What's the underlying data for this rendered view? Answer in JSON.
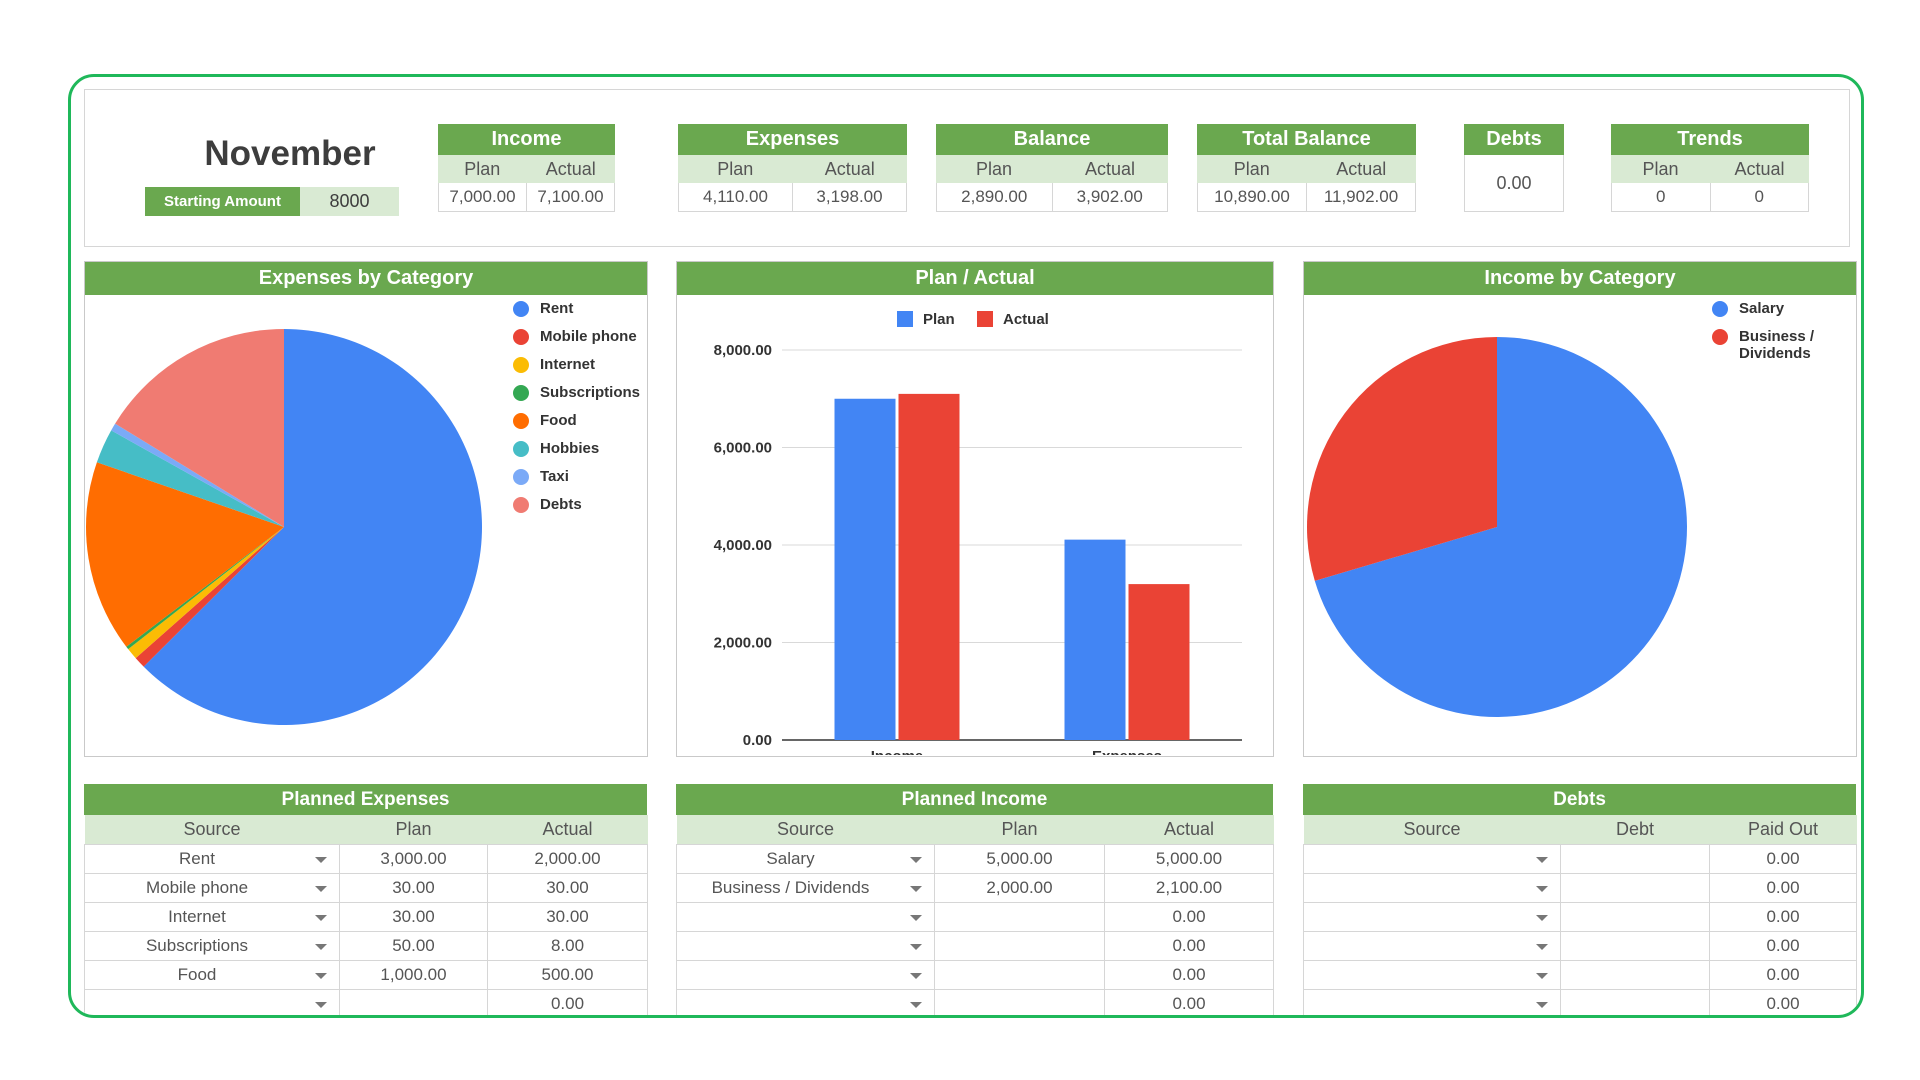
{
  "header": {
    "month": "November",
    "starting_amount_label": "Starting Amount",
    "starting_amount_value": "8000"
  },
  "summary": {
    "income": {
      "title": "Income",
      "plan_label": "Plan",
      "actual_label": "Actual",
      "plan": "7,000.00",
      "actual": "7,100.00"
    },
    "expenses": {
      "title": "Expenses",
      "plan_label": "Plan",
      "actual_label": "Actual",
      "plan": "4,110.00",
      "actual": "3,198.00"
    },
    "balance": {
      "title": "Balance",
      "plan_label": "Plan",
      "actual_label": "Actual",
      "plan": "2,890.00",
      "actual": "3,902.00"
    },
    "total_balance": {
      "title": "Total Balance",
      "plan_label": "Plan",
      "actual_label": "Actual",
      "plan": "10,890.00",
      "actual": "11,902.00"
    },
    "debts": {
      "title": "Debts",
      "value": "0.00"
    },
    "trends": {
      "title": "Trends",
      "plan_label": "Plan",
      "actual_label": "Actual",
      "plan": "0",
      "actual": "0"
    }
  },
  "colors": {
    "green": "#6aa84f",
    "light_green": "#d9ead3",
    "frame": "#1fb85a",
    "blue": "#4285f4",
    "red": "#ea4335",
    "yellow": "#fbbc04",
    "dark_green": "#34a853",
    "orange": "#ff6d01",
    "teal": "#46bdc6",
    "light_blue": "#7baaf7",
    "salmon": "#f07b72"
  },
  "chart_data": [
    {
      "type": "pie",
      "title": "Expenses by Category",
      "legend_position": "right",
      "categories": [
        "Rent",
        "Mobile phone",
        "Internet",
        "Subscriptions",
        "Food",
        "Hobbies",
        "Taxi",
        "Debts"
      ],
      "values": [
        2000,
        30,
        30,
        8,
        500,
        90,
        20,
        520
      ],
      "colors": [
        "#4285f4",
        "#ea4335",
        "#fbbc04",
        "#34a853",
        "#ff6d01",
        "#46bdc6",
        "#7baaf7",
        "#f07b72"
      ]
    },
    {
      "type": "bar",
      "title": "Plan / Actual",
      "legend_position": "top",
      "categories": [
        "Income",
        "Expenses"
      ],
      "series": [
        {
          "name": "Plan",
          "values": [
            7000,
            4110
          ],
          "color": "#4285f4"
        },
        {
          "name": "Actual",
          "values": [
            7100,
            3198
          ],
          "color": "#ea4335"
        }
      ],
      "yticks": [
        "0.00",
        "2,000.00",
        "4,000.00",
        "6,000.00",
        "8,000.00"
      ],
      "ylim": [
        0,
        8000
      ],
      "grid": true
    },
    {
      "type": "pie",
      "title": "Income by Category",
      "legend_position": "top-right",
      "categories": [
        "Salary",
        "Business / Dividends"
      ],
      "values": [
        5000,
        2100
      ],
      "colors": [
        "#4285f4",
        "#ea4335"
      ]
    }
  ],
  "planned_expenses": {
    "title": "Planned Expenses",
    "columns": [
      "Source",
      "Plan",
      "Actual"
    ],
    "rows": [
      {
        "source": "Rent",
        "plan": "3,000.00",
        "actual": "2,000.00"
      },
      {
        "source": "Mobile phone",
        "plan": "30.00",
        "actual": "30.00"
      },
      {
        "source": "Internet",
        "plan": "30.00",
        "actual": "30.00"
      },
      {
        "source": "Subscriptions",
        "plan": "50.00",
        "actual": "8.00"
      },
      {
        "source": "Food",
        "plan": "1,000.00",
        "actual": "500.00"
      },
      {
        "source": "",
        "plan": "",
        "actual": "0.00"
      }
    ]
  },
  "planned_income": {
    "title": "Planned Income",
    "columns": [
      "Source",
      "Plan",
      "Actual"
    ],
    "rows": [
      {
        "source": "Salary",
        "plan": "5,000.00",
        "actual": "5,000.00"
      },
      {
        "source": "Business / Dividends",
        "plan": "2,000.00",
        "actual": "2,100.00"
      },
      {
        "source": "",
        "plan": "",
        "actual": "0.00"
      },
      {
        "source": "",
        "plan": "",
        "actual": "0.00"
      },
      {
        "source": "",
        "plan": "",
        "actual": "0.00"
      },
      {
        "source": "",
        "plan": "",
        "actual": "0.00"
      }
    ]
  },
  "debts_table": {
    "title": "Debts",
    "columns": [
      "Source",
      "Debt",
      "Paid Out"
    ],
    "rows": [
      {
        "source": "",
        "plan": "",
        "actual": "0.00"
      },
      {
        "source": "",
        "plan": "",
        "actual": "0.00"
      },
      {
        "source": "",
        "plan": "",
        "actual": "0.00"
      },
      {
        "source": "",
        "plan": "",
        "actual": "0.00"
      },
      {
        "source": "",
        "plan": "",
        "actual": "0.00"
      },
      {
        "source": "",
        "plan": "",
        "actual": "0.00"
      }
    ]
  }
}
